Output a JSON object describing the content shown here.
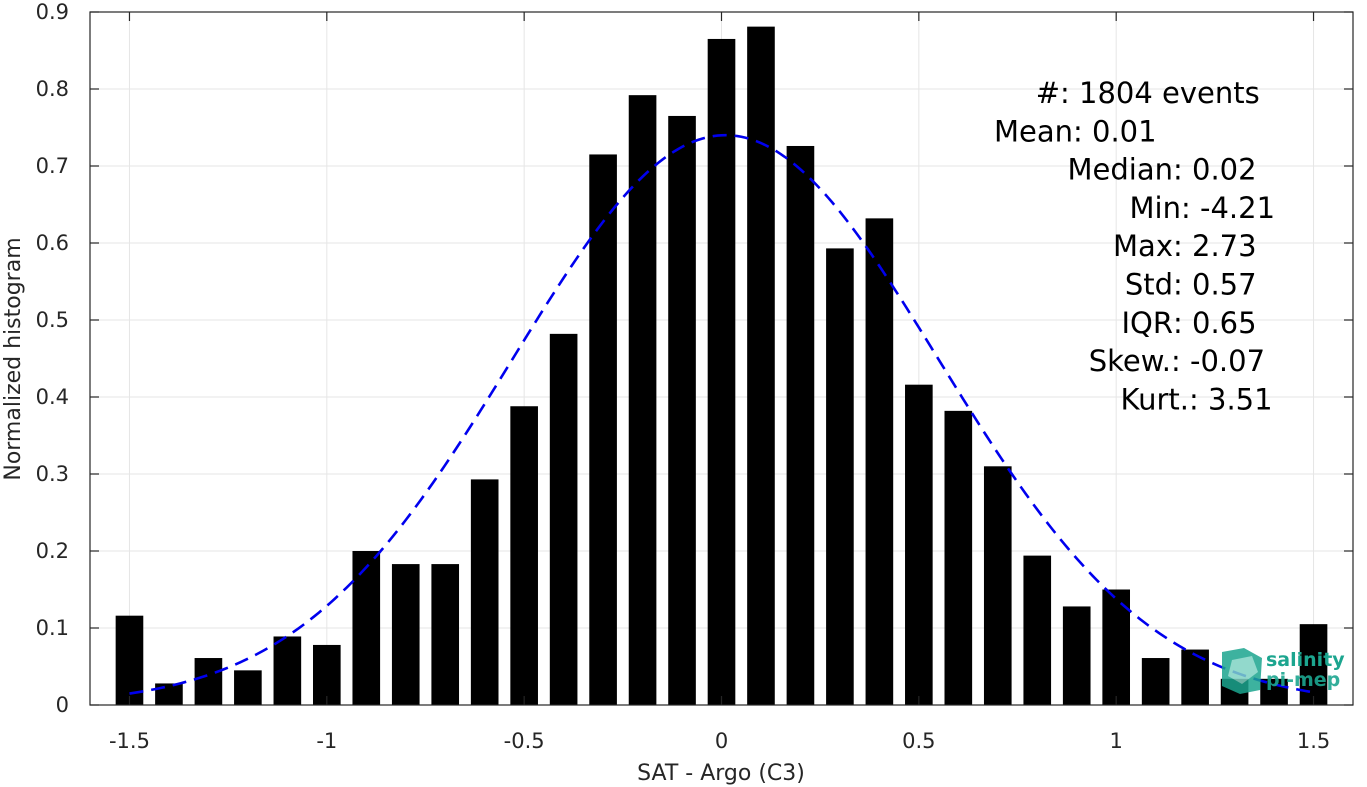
{
  "chart_data": {
    "type": "bar",
    "xlabel": "SAT - Argo (C3)",
    "ylabel": "Normalized histogram",
    "xlim": [
      -1.6,
      1.6
    ],
    "ylim": [
      0,
      0.9
    ],
    "grid": true,
    "x_ticks": [
      -1.5,
      -1,
      -0.5,
      0,
      0.5,
      1,
      1.5
    ],
    "x_tick_labels": [
      "-1.5",
      "-1",
      "-0.5",
      "0",
      "0.5",
      "1",
      "1.5"
    ],
    "y_ticks": [
      0,
      0.1,
      0.2,
      0.3,
      0.4,
      0.5,
      0.6,
      0.7,
      0.8,
      0.9
    ],
    "y_tick_labels": [
      "0",
      "0.1",
      "0.2",
      "0.3",
      "0.4",
      "0.5",
      "0.6",
      "0.7",
      "0.8",
      "0.9"
    ],
    "bar_color": "#000000",
    "bin_width": 0.1,
    "bars": [
      {
        "x": -1.5,
        "y": 0.116
      },
      {
        "x": -1.4,
        "y": 0.028
      },
      {
        "x": -1.3,
        "y": 0.061
      },
      {
        "x": -1.2,
        "y": 0.045
      },
      {
        "x": -1.1,
        "y": 0.089
      },
      {
        "x": -1.0,
        "y": 0.078
      },
      {
        "x": -0.9,
        "y": 0.2
      },
      {
        "x": -0.8,
        "y": 0.183
      },
      {
        "x": -0.7,
        "y": 0.183
      },
      {
        "x": -0.6,
        "y": 0.293
      },
      {
        "x": -0.5,
        "y": 0.388
      },
      {
        "x": -0.4,
        "y": 0.482
      },
      {
        "x": -0.3,
        "y": 0.715
      },
      {
        "x": -0.2,
        "y": 0.792
      },
      {
        "x": -0.1,
        "y": 0.765
      },
      {
        "x": 0.0,
        "y": 0.865
      },
      {
        "x": 0.1,
        "y": 0.881
      },
      {
        "x": 0.2,
        "y": 0.726
      },
      {
        "x": 0.3,
        "y": 0.593
      },
      {
        "x": 0.4,
        "y": 0.632
      },
      {
        "x": 0.5,
        "y": 0.416
      },
      {
        "x": 0.6,
        "y": 0.382
      },
      {
        "x": 0.7,
        "y": 0.31
      },
      {
        "x": 0.8,
        "y": 0.194
      },
      {
        "x": 0.9,
        "y": 0.128
      },
      {
        "x": 1.0,
        "y": 0.15
      },
      {
        "x": 1.1,
        "y": 0.061
      },
      {
        "x": 1.2,
        "y": 0.072
      },
      {
        "x": 1.3,
        "y": 0.034
      },
      {
        "x": 1.4,
        "y": 0.034
      },
      {
        "x": 1.5,
        "y": 0.105
      }
    ],
    "fit_curve": {
      "type": "gaussian",
      "style": "dashed",
      "color": "#0000ee",
      "mean": 0.01,
      "peak": 0.74,
      "sigma": 0.54,
      "x_range": [
        -1.5,
        1.5
      ]
    },
    "stats": [
      {
        "label": "#  ",
        "value": ": 1804 events"
      },
      {
        "label": "Mean ",
        "value": ": 0.01"
      },
      {
        "label": "Median ",
        "value": ": 0.02"
      },
      {
        "label": "Min ",
        "value": ": -4.21"
      },
      {
        "label": "Max ",
        "value": ": 2.73"
      },
      {
        "label": "Std ",
        "value": ": 0.57"
      },
      {
        "label": "IQR ",
        "value": ": 0.65"
      },
      {
        "label": "Skew. ",
        "value": ": -0.07"
      },
      {
        "label": "Kurt. ",
        "value": ": 3.51"
      }
    ]
  },
  "logo": {
    "line1": "salinity",
    "line2": "pi-mep",
    "icon": "salinity-pimep-logo-icon",
    "color": "#1ca58f"
  }
}
